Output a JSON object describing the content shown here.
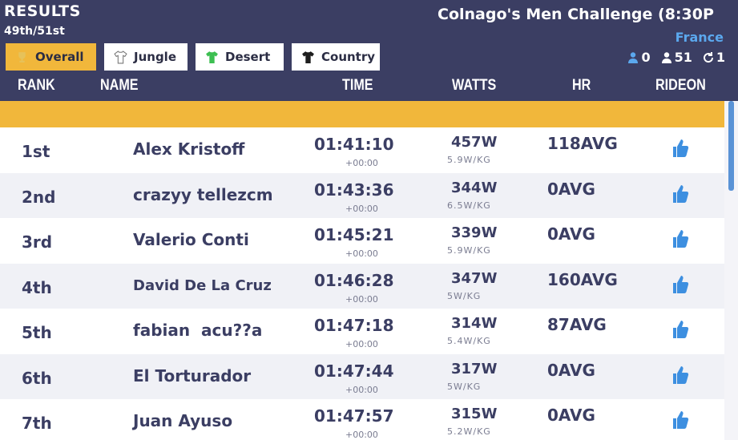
{
  "header": {
    "title": "RESULTS",
    "position": "49th/51st",
    "event_title": "Colnago's Men Challenge (8:30P",
    "country": "France"
  },
  "tabs": [
    {
      "label": "Overall",
      "icon": "trophy-icon",
      "color": "#f1b73b"
    },
    {
      "label": "Jungle",
      "icon": "jersey-white-icon",
      "color": "#ffffff"
    },
    {
      "label": "Desert",
      "icon": "jersey-green-icon",
      "color": "#3dbf52"
    },
    {
      "label": "Country",
      "icon": "jersey-black-icon",
      "color": "#1e1e1e"
    }
  ],
  "counters": {
    "rideons": "0",
    "riders": "51",
    "refresh": "1"
  },
  "columns": {
    "rank": "RANK",
    "name": "NAME",
    "time": "TIME",
    "watts": "WATTS",
    "hr": "HR",
    "rideon": "RIDEON"
  },
  "rows": [
    {
      "rank": "1st",
      "name": "Alex Kristoff",
      "time": "01:41:10",
      "gap": "+00:00",
      "watts": "457W",
      "wkg": "5.9W/KG",
      "hr": "118AVG"
    },
    {
      "rank": "2nd",
      "name": "crazyy tellezcm",
      "time": "01:43:36",
      "gap": "+00:00",
      "watts": "344W",
      "wkg": "6.5W/KG",
      "hr": "0AVG"
    },
    {
      "rank": "3rd",
      "name": "Valerio Conti",
      "time": "01:45:21",
      "gap": "+00:00",
      "watts": "339W",
      "wkg": "5.9W/KG",
      "hr": "0AVG"
    },
    {
      "rank": "4th",
      "name": "David De La Cruz",
      "time": "01:46:28",
      "gap": "+00:00",
      "watts": "347W",
      "wkg": "5W/KG",
      "hr": "160AVG"
    },
    {
      "rank": "5th",
      "name": "fabian  acu??a",
      "time": "01:47:18",
      "gap": "+00:00",
      "watts": "314W",
      "wkg": "5.4W/KG",
      "hr": "87AVG"
    },
    {
      "rank": "6th",
      "name": "El Torturador",
      "time": "01:47:44",
      "gap": "+00:00",
      "watts": "317W",
      "wkg": "5W/KG",
      "hr": "0AVG"
    },
    {
      "rank": "7th",
      "name": "Juan Ayuso",
      "time": "01:47:57",
      "gap": "+00:00",
      "watts": "315W",
      "wkg": "5.2W/KG",
      "hr": "0AVG"
    }
  ],
  "colors": {
    "header_bg": "#3b3e63",
    "accent": "#f1b73b",
    "rideon_blue": "#3d8fe0",
    "country_blue": "#5ba8ee"
  }
}
